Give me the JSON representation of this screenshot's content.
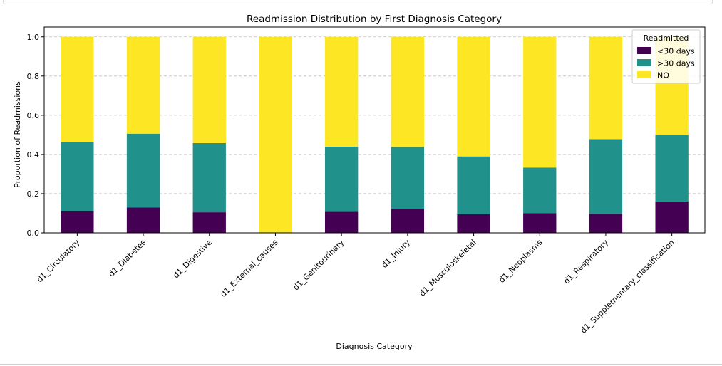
{
  "chart_data": {
    "type": "bar",
    "stacked": true,
    "title": "Readmission Distribution by First Diagnosis Category",
    "xlabel": "Diagnosis Category",
    "ylabel": "Proportion of Readmissions",
    "ylim": [
      0,
      1.05
    ],
    "yticks": [
      "0.0",
      "0.2",
      "0.4",
      "0.6",
      "0.8",
      "1.0"
    ],
    "grid": "y-dashed",
    "legend": {
      "title": "Readmitted",
      "placement": "top-right"
    },
    "categories": [
      "d1_Circulatory",
      "d1_Diabetes",
      "d1_Digestive",
      "d1_External_causes",
      "d1_Genitourinary",
      "d1_Injury",
      "d1_Musculoskeletal",
      "d1_Neoplasms",
      "d1_Respiratory",
      "d1_Supplementary_classification"
    ],
    "series": [
      {
        "name": "<30 days",
        "color": "#440154",
        "values": [
          0.11,
          0.13,
          0.105,
          0.0,
          0.108,
          0.12,
          0.095,
          0.1,
          0.097,
          0.16
        ]
      },
      {
        "name": ">30 days",
        "color": "#21918c",
        "values": [
          0.352,
          0.376,
          0.353,
          0.0,
          0.332,
          0.318,
          0.295,
          0.233,
          0.381,
          0.34
        ]
      },
      {
        "name": "NO",
        "color": "#fde725",
        "values": [
          0.538,
          0.494,
          0.542,
          1.0,
          0.56,
          0.562,
          0.61,
          0.667,
          0.522,
          0.5
        ]
      }
    ]
  }
}
